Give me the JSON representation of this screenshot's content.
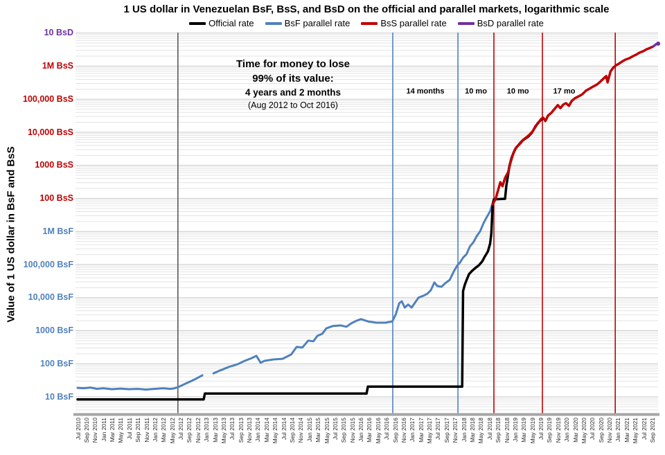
{
  "title": "1 US dollar in Venezuelan BsF, BsS, and BsD on the official and parallel markets, logarithmic scale",
  "annotation": {
    "line1": "Time for money to lose",
    "line2": "99% of its value:",
    "line3": "4 years and 2 months",
    "line4": "(Aug 2012 to Oct 2016)"
  },
  "colors": {
    "official_black": "#000000",
    "bsf_blue": "#4F81BD",
    "bss_red": "#C00000",
    "bsd_purple": "#7030A0",
    "event_gray": "#595959",
    "grid_major": "#C7C7C7",
    "grid_minor": "#E3E3E3",
    "axis_bar": "#A6A6A6"
  },
  "chart_data": {
    "type": "line",
    "x_axis": {
      "unit": "months since Jul 2010",
      "tick_interval_months": 2,
      "tick_labels": [
        "Jul 2010",
        "Sep 2010",
        "Nov 2010",
        "Jan 2011",
        "Mar 2011",
        "May 2011",
        "Jul 2011",
        "Sep 2011",
        "Nov 2011",
        "Jan 2012",
        "Mar 2012",
        "May 2012",
        "Jul 2012",
        "Sep 2012",
        "Nov 2012",
        "Jan 2013",
        "Mar 2013",
        "May 2013",
        "Jul 2013",
        "Sep 2013",
        "Nov 2013",
        "Jan 2014",
        "Mar 2014",
        "May 2014",
        "Jul 2014",
        "Sep 2014",
        "Nov 2014",
        "Jan 2015",
        "Mar 2015",
        "May 2015",
        "Jul 2015",
        "Sep 2015",
        "Nov 2015",
        "Jan 2016",
        "Mar 2016",
        "May 2016",
        "Jul 2016",
        "Sep 2016",
        "Nov 2016",
        "Jan 2017",
        "Mar 2017",
        "May 2017",
        "Jul 2017",
        "Sep 2017",
        "Nov 2017",
        "Jan 2018",
        "Mar 2018",
        "May 2018",
        "Jul 2018",
        "Sep 2018",
        "Nov 2018",
        "Jan 2019",
        "Mar 2019",
        "May 2019",
        "Jul 2019",
        "Sep 2019",
        "Nov 2019",
        "Jan 2020",
        "Mar 2020",
        "May 2020",
        "Jul 2020",
        "Sep 2020",
        "Nov 2020",
        "Jan 2021",
        "Mar 2021",
        "May 2021",
        "Jul 2021",
        "Sep 2021"
      ]
    },
    "y_axis": {
      "title": "Value of 1 US dollar in BsF and BsS",
      "scale": "log10",
      "unit": "BsF-equivalent exponent (1 BsS = 100,000 BsF; 1 BsD = 1,000,000 BsS)",
      "range_exponents": [
        0.45,
        12
      ],
      "labels": [
        {
          "text": "10 BsD",
          "exp": 12,
          "color": "#7030A0"
        },
        {
          "text": "1M BsS",
          "exp": 11,
          "color": "#C00000"
        },
        {
          "text": "100,000 BsS",
          "exp": 10,
          "color": "#C00000"
        },
        {
          "text": "10,000 BsS",
          "exp": 9,
          "color": "#C00000"
        },
        {
          "text": "1000 BsS",
          "exp": 8,
          "color": "#C00000"
        },
        {
          "text": "100 BsS",
          "exp": 7,
          "color": "#C00000"
        },
        {
          "text": "1M BsF",
          "exp": 6,
          "color": "#4F81BD"
        },
        {
          "text": "100,000 BsF",
          "exp": 5,
          "color": "#4F81BD"
        },
        {
          "text": "10,000 BsF",
          "exp": 4,
          "color": "#4F81BD"
        },
        {
          "text": "1000 BsF",
          "exp": 3,
          "color": "#4F81BD"
        },
        {
          "text": "100 BsF",
          "exp": 2,
          "color": "#4F81BD"
        },
        {
          "text": "10 BsF",
          "exp": 1,
          "color": "#4F81BD"
        }
      ]
    },
    "event_lines": [
      {
        "t": 23.4,
        "color": "#595959"
      },
      {
        "t": 73.5,
        "color": "#4F81BD"
      },
      {
        "t": 88.7,
        "color": "#4F81BD"
      },
      {
        "t": 97.1,
        "color": "#C00000"
      },
      {
        "t": 108.4,
        "color": "#C00000"
      },
      {
        "t": 125.4,
        "color": "#C00000"
      }
    ],
    "interval_labels": [
      {
        "text": "14 months",
        "t": 81.1
      },
      {
        "text": "10 mo",
        "t": 92.9
      },
      {
        "text": "10 mo",
        "t": 102.7
      },
      {
        "text": "17 mo",
        "t": 113.5
      }
    ],
    "series": [
      {
        "id": "bsf-parallel",
        "name": "BsF parallel rate",
        "color": "#4F81BD",
        "width": 3,
        "segments": [
          [
            [
              0,
              1.27
            ],
            [
              1.5,
              1.26
            ],
            [
              3,
              1.28
            ],
            [
              4.5,
              1.24
            ],
            [
              6,
              1.26
            ],
            [
              8,
              1.23
            ],
            [
              10,
              1.25
            ],
            [
              12,
              1.23
            ],
            [
              14,
              1.24
            ],
            [
              16,
              1.22
            ],
            [
              18,
              1.24
            ],
            [
              20,
              1.26
            ],
            [
              21.5,
              1.24
            ],
            [
              22.3,
              1.25
            ],
            [
              23.4,
              1.29
            ],
            [
              25.2,
              1.4
            ],
            [
              27.2,
              1.52
            ],
            [
              29.1,
              1.65
            ]
          ],
          [
            [
              31.7,
              1.71
            ],
            [
              33.3,
              1.8
            ],
            [
              35.2,
              1.9
            ],
            [
              37.2,
              1.98
            ],
            [
              39,
              2.09
            ],
            [
              40.6,
              2.17
            ],
            [
              41.7,
              2.24
            ],
            [
              42.7,
              2.03
            ],
            [
              43.6,
              2.09
            ],
            [
              45.7,
              2.13
            ],
            [
              47.8,
              2.15
            ],
            [
              49.8,
              2.28
            ],
            [
              51.1,
              2.51
            ],
            [
              52.4,
              2.49
            ],
            [
              53.8,
              2.7
            ],
            [
              55,
              2.68
            ],
            [
              55.9,
              2.84
            ],
            [
              57.1,
              2.91
            ],
            [
              58,
              3.07
            ],
            [
              59.5,
              3.14
            ],
            [
              61.4,
              3.16
            ],
            [
              62.7,
              3.12
            ],
            [
              63.8,
              3.22
            ],
            [
              65,
              3.3
            ],
            [
              66.1,
              3.35
            ],
            [
              67.7,
              3.28
            ],
            [
              69.7,
              3.24
            ],
            [
              71.8,
              3.24
            ],
            [
              73.4,
              3.28
            ],
            [
              74.2,
              3.49
            ],
            [
              75,
              3.83
            ],
            [
              75.6,
              3.89
            ],
            [
              76.3,
              3.7
            ],
            [
              77.1,
              3.79
            ],
            [
              77.9,
              3.7
            ],
            [
              78.7,
              3.85
            ],
            [
              79.5,
              4
            ],
            [
              80.7,
              4.06
            ],
            [
              81.6,
              4.12
            ],
            [
              82.4,
              4.23
            ],
            [
              83.2,
              4.46
            ],
            [
              83.9,
              4.35
            ],
            [
              84.9,
              4.33
            ],
            [
              85.8,
              4.44
            ],
            [
              86.8,
              4.54
            ],
            [
              87.8,
              4.81
            ],
            [
              88.6,
              4.98
            ],
            [
              89.2,
              5.06
            ],
            [
              89.9,
              5.21
            ],
            [
              90.7,
              5.31
            ],
            [
              91.5,
              5.55
            ],
            [
              92.3,
              5.67
            ],
            [
              93.1,
              5.86
            ],
            [
              93.9,
              6.01
            ],
            [
              94.7,
              6.26
            ],
            [
              95.5,
              6.45
            ],
            [
              96.2,
              6.61
            ],
            [
              96.6,
              6.78
            ],
            [
              97,
              6.91
            ]
          ]
        ]
      },
      {
        "id": "official",
        "name": "Official rate",
        "color": "#000000",
        "width": 3.5,
        "segments": [
          [
            [
              0,
              0.92
            ],
            [
              29.4,
              0.92
            ],
            [
              29.7,
              1.1
            ],
            [
              67.4,
              1.1
            ],
            [
              67.7,
              1.31
            ],
            [
              89.7,
              1.31
            ],
            [
              89.9,
              4.2
            ],
            [
              90.3,
              4.39
            ],
            [
              90.8,
              4.56
            ],
            [
              91.3,
              4.71
            ],
            [
              92,
              4.81
            ],
            [
              92.8,
              4.9
            ],
            [
              93.6,
              4.98
            ],
            [
              94.4,
              5.1
            ],
            [
              95,
              5.25
            ],
            [
              95.7,
              5.4
            ],
            [
              96.2,
              5.63
            ],
            [
              96.5,
              5.94
            ],
            [
              96.8,
              6.82
            ],
            [
              97.1,
              6.97
            ],
            [
              99.7,
              6.99
            ],
            [
              100,
              7.39
            ],
            [
              100.4,
              7.72
            ],
            [
              100.7,
              7.97
            ],
            [
              101.2,
              8.22
            ],
            [
              101.7,
              8.39
            ],
            [
              102.3,
              8.54
            ],
            [
              103,
              8.64
            ],
            [
              103.6,
              8.73
            ],
            [
              104.2,
              8.79
            ],
            [
              105.1,
              8.87
            ],
            [
              105.9,
              8.98
            ],
            [
              106.7,
              9.15
            ],
            [
              107.3,
              9.27
            ],
            [
              108.1,
              9.38
            ],
            [
              108.6,
              9.42
            ]
          ]
        ]
      },
      {
        "id": "bss-parallel",
        "name": "BsS parallel rate",
        "color": "#C00000",
        "width": 3.5,
        "segments": [
          [
            [
              96.8,
              6.82
            ],
            [
              97.5,
              6.99
            ],
            [
              98.1,
              7.26
            ],
            [
              98.6,
              7.49
            ],
            [
              99.1,
              7.37
            ],
            [
              99.7,
              7.62
            ],
            [
              100.4,
              7.79
            ],
            [
              101,
              8.1
            ],
            [
              101.5,
              8.31
            ],
            [
              102,
              8.48
            ],
            [
              102.6,
              8.58
            ],
            [
              103.3,
              8.67
            ],
            [
              103.9,
              8.77
            ],
            [
              104.7,
              8.85
            ],
            [
              105.5,
              8.94
            ],
            [
              106.2,
              9.04
            ],
            [
              106.8,
              9.19
            ],
            [
              107.5,
              9.29
            ],
            [
              108.1,
              9.4
            ],
            [
              108.6,
              9.44
            ],
            [
              109.1,
              9.34
            ],
            [
              109.7,
              9.5
            ],
            [
              110.5,
              9.59
            ],
            [
              111.4,
              9.73
            ],
            [
              112,
              9.82
            ],
            [
              112.6,
              9.73
            ],
            [
              113.3,
              9.84
            ],
            [
              113.9,
              9.88
            ],
            [
              114.6,
              9.8
            ],
            [
              115.2,
              9.94
            ],
            [
              116,
              10.03
            ],
            [
              116.9,
              10.09
            ],
            [
              117.7,
              10.15
            ],
            [
              118.6,
              10.26
            ],
            [
              119.4,
              10.32
            ],
            [
              120.2,
              10.38
            ],
            [
              121.1,
              10.44
            ],
            [
              121.9,
              10.53
            ],
            [
              122.7,
              10.63
            ],
            [
              123.3,
              10.7
            ],
            [
              123.6,
              10.51
            ],
            [
              124.3,
              10.84
            ],
            [
              124.9,
              10.95
            ],
            [
              125.6,
              11.03
            ],
            [
              126.2,
              11.07
            ],
            [
              127,
              11.14
            ],
            [
              127.8,
              11.2
            ],
            [
              128.7,
              11.24
            ],
            [
              129.5,
              11.3
            ],
            [
              130.3,
              11.35
            ],
            [
              131.1,
              11.41
            ],
            [
              131.9,
              11.45
            ],
            [
              132.7,
              11.51
            ],
            [
              133.5,
              11.55
            ],
            [
              134.3,
              11.6
            ]
          ]
        ]
      },
      {
        "id": "bsd-parallel",
        "name": "BsD parallel rate",
        "color": "#7030A0",
        "width": 3.5,
        "segments": [
          [
            [
              134.3,
              11.6
            ],
            [
              134.9,
              11.66
            ],
            [
              135.4,
              11.68
            ]
          ]
        ]
      }
    ],
    "legend_order": [
      1,
      0,
      2,
      3
    ]
  }
}
